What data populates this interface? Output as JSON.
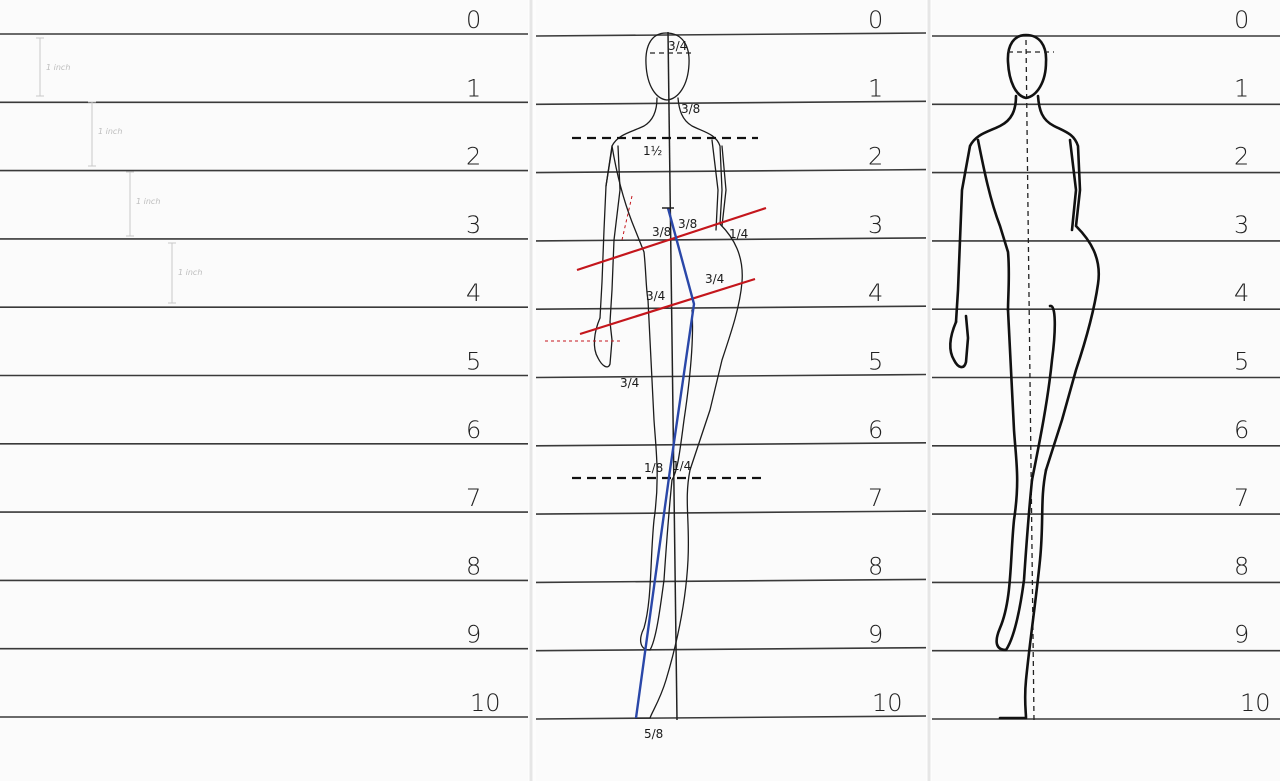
{
  "panels": [
    {
      "id": "left",
      "numbers": [
        "0",
        "1",
        "2",
        "3",
        "4",
        "5",
        "6",
        "7",
        "8",
        "9",
        "10"
      ]
    },
    {
      "id": "middle",
      "numbers": [
        "0",
        "1",
        "2",
        "3",
        "4",
        "5",
        "6",
        "7",
        "8",
        "9",
        "10"
      ]
    },
    {
      "id": "right",
      "numbers": [
        "0",
        "1",
        "2",
        "3",
        "4",
        "5",
        "6",
        "7",
        "8",
        "9",
        "10"
      ]
    }
  ],
  "left_panel": {
    "faint_labels": [
      "1 inch",
      "1 inch",
      "1 inch",
      "1 inch"
    ]
  },
  "annotations": {
    "head": "3/4",
    "neck": "3/8",
    "shoulder": "1½",
    "bust_left": "3/8",
    "bust_right": "3/8",
    "waist_right": "1/4",
    "hip_left": "3/4",
    "hip_right": "3/4",
    "hand": "3/4",
    "knee_left": "1/8",
    "knee_right": "1/4",
    "foot": "5/8"
  },
  "colors": {
    "tilt_lines": "#c4161c",
    "balance_line": "#2a47a8",
    "ink": "#1c1c1c"
  }
}
